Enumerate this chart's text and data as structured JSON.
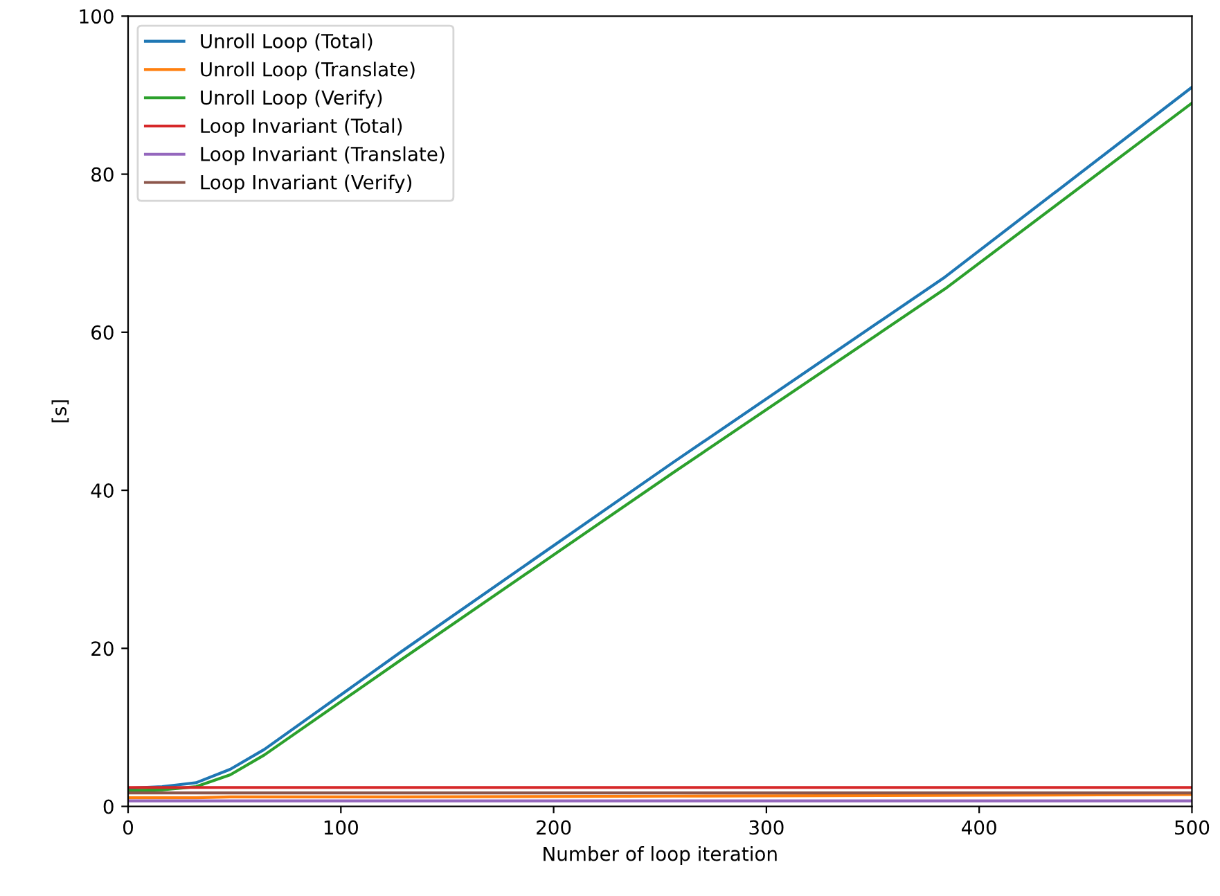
{
  "chart_data": {
    "type": "line",
    "xlabel": "Number of loop iteration",
    "ylabel": "[s]",
    "xlim": [
      0,
      500
    ],
    "ylim": [
      0,
      100
    ],
    "xticks": [
      0,
      100,
      200,
      300,
      400,
      500
    ],
    "yticks": [
      0,
      20,
      40,
      60,
      80,
      100
    ],
    "grid": false,
    "legend": "top left",
    "marker": "none",
    "line_style": "solid",
    "x": [
      0,
      16,
      32,
      48,
      64,
      128,
      256,
      384,
      500
    ],
    "series": [
      {
        "name": "Unroll Loop (Total)",
        "color": "#1f77b4",
        "values": [
          2.3,
          2.5,
          3.0,
          4.7,
          7.2,
          19.5,
          43.5,
          67,
          91
        ]
      },
      {
        "name": "Unroll Loop (Translate)",
        "color": "#ff7f0e",
        "values": [
          1.1,
          1.1,
          1.1,
          1.2,
          1.2,
          1.2,
          1.3,
          1.4,
          1.5
        ]
      },
      {
        "name": "Unroll Loop (Verify)",
        "color": "#2ca02c",
        "values": [
          2.0,
          2.1,
          2.5,
          4.0,
          6.5,
          18.5,
          42.2,
          65.5,
          89
        ]
      },
      {
        "name": "Loop Invariant (Total)",
        "color": "#d62728",
        "values": [
          2.4,
          2.4,
          2.4,
          2.4,
          2.4,
          2.4,
          2.4,
          2.4,
          2.4
        ]
      },
      {
        "name": "Loop Invariant (Translate)",
        "color": "#9467bd",
        "values": [
          0.7,
          0.7,
          0.7,
          0.7,
          0.7,
          0.7,
          0.7,
          0.7,
          0.7
        ]
      },
      {
        "name": "Loop Invariant (Verify)",
        "color": "#8c564b",
        "values": [
          1.7,
          1.7,
          1.7,
          1.7,
          1.7,
          1.7,
          1.7,
          1.7,
          1.7
        ]
      }
    ]
  }
}
